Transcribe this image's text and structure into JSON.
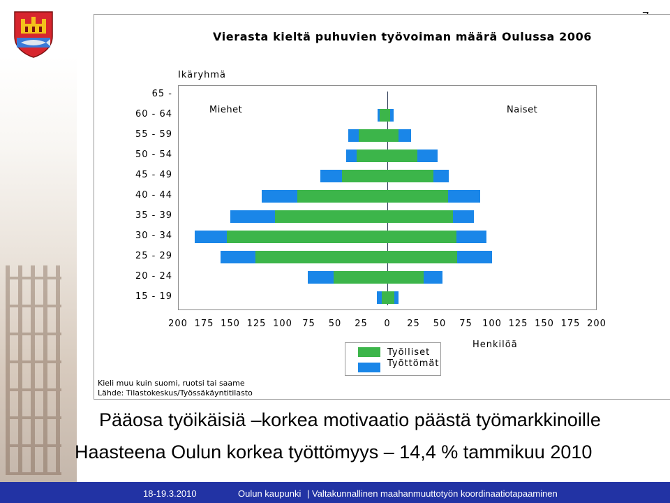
{
  "page_number": "7",
  "footer": {
    "date": "18-19.3.2010",
    "org": "Oulun kaupunki",
    "event": "| Valtakunnallinen maahanmuuttotyön koordinaatiotapaaminen"
  },
  "headlines": {
    "line1": "Pääosa työikäisiä –korkea motivaatio päästä työmarkkinoille",
    "line2": "Haasteena Oulun korkea työttömyys – 14,4 % tammikuu 2010"
  },
  "colors": {
    "employed": "#3cb54a",
    "unemployed": "#1a86e8",
    "footer": "#2233a4"
  },
  "chart_data": {
    "type": "bar",
    "orientation": "horizontal population pyramid",
    "title": "Vierasta kieltä puhuvien työvoiman määrä Oulussa 2006",
    "ylabel": "Ikäryhmä",
    "xlabel": "Henkilöä",
    "left_group": "Miehet",
    "right_group": "Naiset",
    "categories": [
      "65 -",
      "60 - 64",
      "55 - 59",
      "50 - 54",
      "45 - 49",
      "40 - 44",
      "35 - 39",
      "30 - 34",
      "25 - 29",
      "20 - 24",
      "15 - 19"
    ],
    "x_ticks": [
      "200",
      "175",
      "150",
      "125",
      "100",
      "75",
      "50",
      "25",
      "0",
      "25",
      "50",
      "75",
      "100",
      "125",
      "150",
      "175",
      "200"
    ],
    "xlim": [
      -200,
      200
    ],
    "series": [
      {
        "name": "Työlliset",
        "men": [
          0,
          8,
          28,
          30,
          44,
          87,
          108,
          154,
          127,
          52,
          6
        ],
        "women": [
          0,
          2,
          10,
          28,
          43,
          57,
          62,
          65,
          66,
          34,
          6
        ]
      },
      {
        "name": "Työttömät",
        "men": [
          0,
          2,
          10,
          10,
          21,
          34,
          43,
          31,
          33,
          25,
          5
        ],
        "women": [
          0,
          3,
          12,
          19,
          15,
          31,
          20,
          29,
          33,
          18,
          4
        ]
      }
    ],
    "legend_position": "bottom-center",
    "source_lines": [
      "Kieli muu kuin suomi, ruotsi tai saame",
      "Lähde: Tilastokeskus/Työssäkäyntitilasto"
    ]
  }
}
